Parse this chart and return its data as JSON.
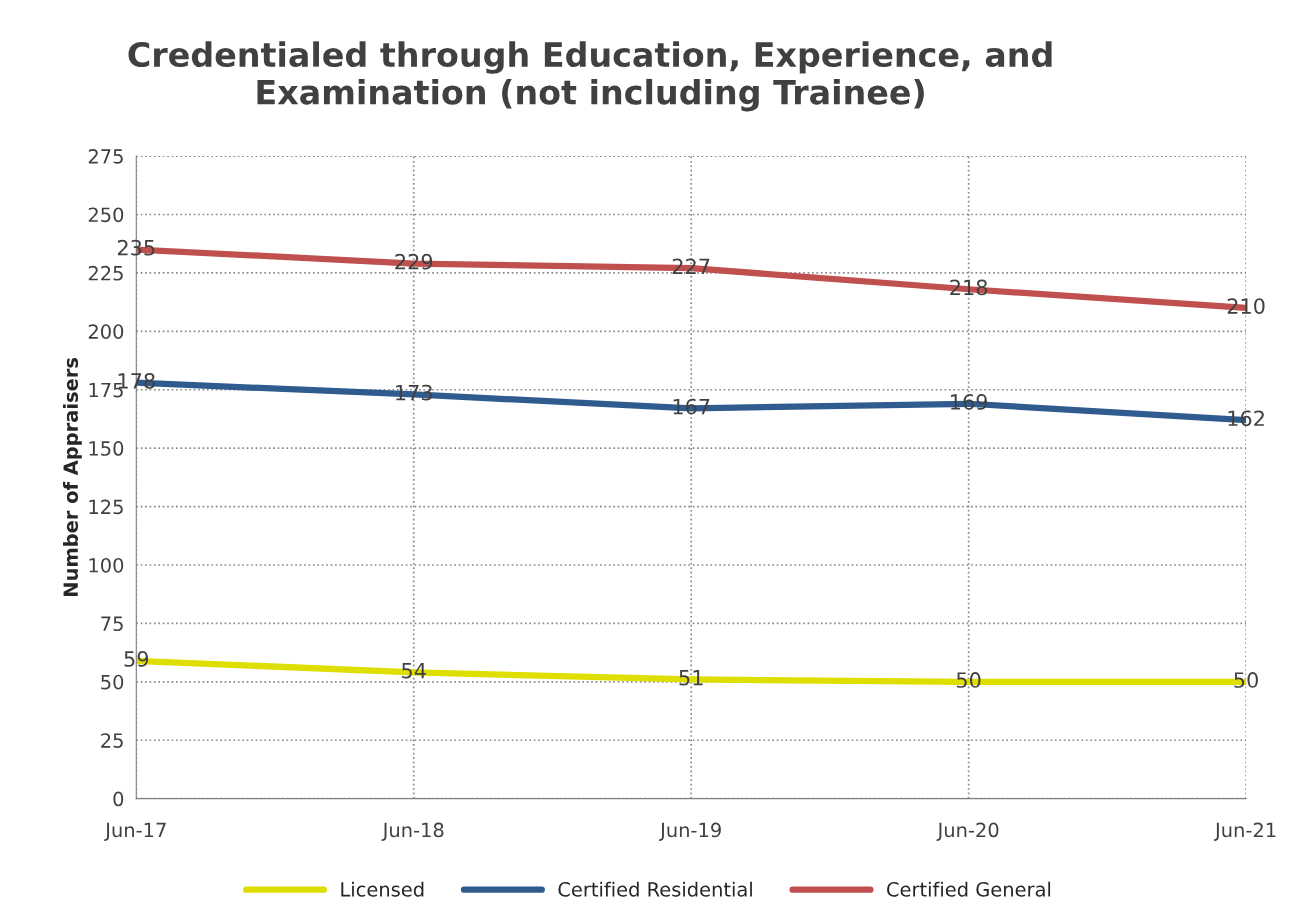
{
  "chart_data": {
    "type": "line",
    "title": "Credentialed through Education, Experience, and\nExamination (not including Trainee)",
    "ylabel": "Number of Appraisers",
    "categories": [
      "Jun-17",
      "Jun-18",
      "Jun-19",
      "Jun-20",
      "Jun-21"
    ],
    "series": [
      {
        "name": "Licensed",
        "color": "#dede00",
        "values": [
          59,
          54,
          51,
          50,
          50
        ]
      },
      {
        "name": "Certified Residential",
        "color": "#2f5b8e",
        "values": [
          178,
          173,
          167,
          169,
          162
        ]
      },
      {
        "name": "Certified General",
        "color": "#c0504d",
        "values": [
          235,
          229,
          227,
          218,
          210
        ]
      }
    ],
    "ylim": [
      0,
      275
    ],
    "yticks": [
      0,
      25,
      50,
      75,
      100,
      125,
      150,
      175,
      200,
      225,
      250,
      275
    ],
    "grid": true,
    "legend": "bottom",
    "data_labels": true,
    "marker": "none",
    "line_style": "solid"
  }
}
